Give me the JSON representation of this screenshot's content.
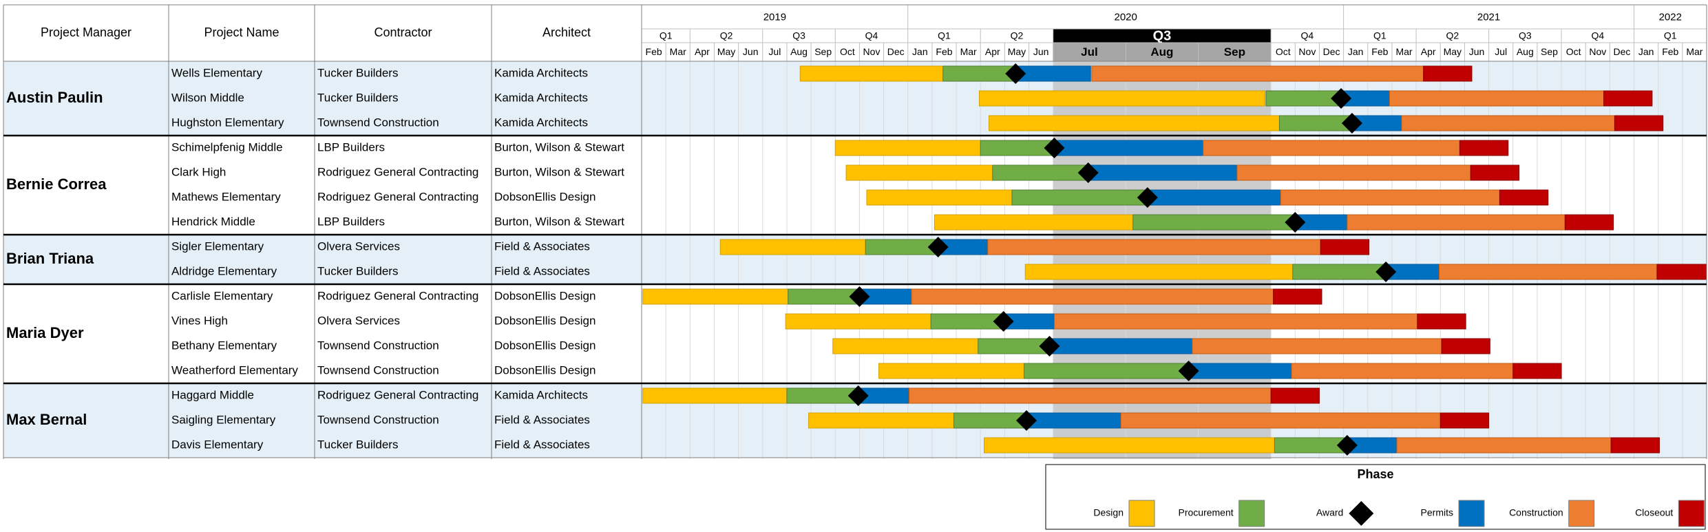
{
  "columns": {
    "manager": "Project Manager",
    "project": "Project Name",
    "contractor": "Contractor",
    "architect": "Architect"
  },
  "timeline": {
    "years": [
      {
        "label": "2019",
        "start": 0,
        "end": 11
      },
      {
        "label": "2020",
        "start": 11,
        "end": 29
      },
      {
        "label": "2021",
        "start": 29,
        "end": 41
      },
      {
        "label": "2022",
        "start": 41,
        "end": 44
      }
    ],
    "quarters": [
      {
        "label": "Q1",
        "start": 0,
        "end": 2
      },
      {
        "label": "Q2",
        "start": 2,
        "end": 5
      },
      {
        "label": "Q3",
        "start": 5,
        "end": 8
      },
      {
        "label": "Q4",
        "start": 8,
        "end": 11
      },
      {
        "label": "Q1",
        "start": 11,
        "end": 14
      },
      {
        "label": "Q2",
        "start": 14,
        "end": 17
      },
      {
        "label": "Q3",
        "start": 17,
        "end": 26,
        "highlight": true
      },
      {
        "label": "Q4",
        "start": 26,
        "end": 29
      },
      {
        "label": "Q1",
        "start": 29,
        "end": 32
      },
      {
        "label": "Q2",
        "start": 32,
        "end": 35
      },
      {
        "label": "Q3",
        "start": 35,
        "end": 38
      },
      {
        "label": "Q4",
        "start": 38,
        "end": 41
      },
      {
        "label": "Q1",
        "start": 41,
        "end": 44
      }
    ],
    "months": [
      {
        "label": "Feb"
      },
      {
        "label": "Mar"
      },
      {
        "label": "Apr"
      },
      {
        "label": "May"
      },
      {
        "label": "Jun"
      },
      {
        "label": "Jul"
      },
      {
        "label": "Aug"
      },
      {
        "label": "Sep"
      },
      {
        "label": "Oct"
      },
      {
        "label": "Nov"
      },
      {
        "label": "Dec"
      },
      {
        "label": "Jan"
      },
      {
        "label": "Feb"
      },
      {
        "label": "Mar"
      },
      {
        "label": "Apr"
      },
      {
        "label": "May"
      },
      {
        "label": "Jun"
      },
      {
        "label": "Jul",
        "span": 3,
        "highlight": true
      },
      {
        "label": "Aug",
        "span": 3,
        "highlight": true
      },
      {
        "label": "Sep",
        "span": 3,
        "highlight": true
      },
      {
        "label": "Oct"
      },
      {
        "label": "Nov"
      },
      {
        "label": "Dec"
      },
      {
        "label": "Jan"
      },
      {
        "label": "Feb"
      },
      {
        "label": "Mar"
      },
      {
        "label": "Apr"
      },
      {
        "label": "May"
      },
      {
        "label": "Jun"
      },
      {
        "label": "Jul"
      },
      {
        "label": "Aug"
      },
      {
        "label": "Sep"
      },
      {
        "label": "Oct"
      },
      {
        "label": "Nov"
      },
      {
        "label": "Dec"
      },
      {
        "label": "Jan"
      },
      {
        "label": "Feb"
      },
      {
        "label": "Mar"
      }
    ]
  },
  "chart_data": {
    "type": "gantt",
    "title": "",
    "time_unit": "month slots from Feb 2019 (Jul/Aug/Sep 2020 expanded to 3 slots each)",
    "highlight_period": "Q3 2020",
    "phase_colors": {
      "Design": "#FFC000",
      "Procurement": "#70AD47",
      "Award": "#000000",
      "Permits": "#0070C0",
      "Construction": "#ED7D31",
      "Closeout": "#C00000"
    },
    "groups": [
      {
        "manager": "Austin Paulin",
        "projects": [
          {
            "name": "Wells Elementary",
            "contractor": "Tucker Builders",
            "architect": "Kamida Architects",
            "design": [
              6.55,
              12.45
            ],
            "procurement": [
              12.45,
              15.45
            ],
            "award": 15.45,
            "permits": [
              15.45,
              18.55
            ],
            "construction": [
              18.6,
              32.3
            ],
            "closeout": [
              32.3,
              34.3
            ]
          },
          {
            "name": "Wilson Middle",
            "contractor": "Tucker Builders",
            "architect": "Kamida Architects",
            "design": [
              13.95,
              25.75
            ],
            "procurement": [
              25.8,
              28.9
            ],
            "award": 28.9,
            "permits": [
              28.9,
              30.9
            ],
            "construction": [
              30.9,
              39.75
            ],
            "closeout": [
              39.75,
              41.75
            ]
          },
          {
            "name": "Hughston Elementary",
            "contractor": "Townsend Construction",
            "architect": "Kamida Architects",
            "design": [
              14.35,
              26.35
            ],
            "procurement": [
              26.35,
              29.35
            ],
            "award": 29.35,
            "permits": [
              29.35,
              31.4
            ],
            "construction": [
              31.4,
              40.2
            ],
            "closeout": [
              40.2,
              42.2
            ]
          }
        ]
      },
      {
        "manager": "Bernie Correa",
        "projects": [
          {
            "name": "Schimelpfenig Middle",
            "contractor": "LBP Builders",
            "architect": "Burton, Wilson & Stewart",
            "design": [
              8.0,
              14.0
            ],
            "procurement": [
              14.0,
              17.05
            ],
            "award": 17.05,
            "permits": [
              17.05,
              23.2
            ],
            "construction": [
              23.2,
              33.8
            ],
            "closeout": [
              33.8,
              35.8
            ]
          },
          {
            "name": "Clark High",
            "contractor": "Rodriguez General Contracting",
            "architect": "Burton, Wilson & Stewart",
            "design": [
              8.45,
              14.5
            ],
            "procurement": [
              14.5,
              18.45
            ],
            "award": 18.45,
            "permits": [
              18.45,
              24.6
            ],
            "construction": [
              24.6,
              34.25
            ],
            "closeout": [
              34.25,
              36.25
            ]
          },
          {
            "name": "Mathews Elementary",
            "contractor": "Rodriguez General Contracting",
            "architect": "DobsonEllis Design",
            "design": [
              9.3,
              15.3
            ],
            "procurement": [
              15.3,
              20.9
            ],
            "award": 20.9,
            "permits": [
              20.9,
              26.4
            ],
            "construction": [
              26.4,
              35.45
            ],
            "closeout": [
              35.45,
              37.45
            ]
          },
          {
            "name": "Hendrick Middle",
            "contractor": "LBP Builders",
            "architect": "Burton, Wilson & Stewart",
            "design": [
              12.1,
              20.3
            ],
            "procurement": [
              20.3,
              27.0
            ],
            "award": 27.0,
            "permits": [
              27.0,
              29.15
            ],
            "construction": [
              29.15,
              38.15
            ],
            "closeout": [
              38.15,
              40.15
            ]
          }
        ]
      },
      {
        "manager": "Brian Triana",
        "projects": [
          {
            "name": "Sigler Elementary",
            "contractor": "Olvera Services",
            "architect": "Field & Associates",
            "design": [
              3.25,
              9.25
            ],
            "procurement": [
              9.25,
              12.25
            ],
            "award": 12.25,
            "permits": [
              12.25,
              14.3
            ],
            "construction": [
              14.3,
              28.05
            ],
            "closeout": [
              28.05,
              30.05
            ]
          },
          {
            "name": "Aldridge Elementary",
            "contractor": "Tucker Builders",
            "architect": "Field & Associates",
            "design": [
              15.85,
              26.9
            ],
            "procurement": [
              26.9,
              30.75
            ],
            "award": 30.75,
            "permits": [
              30.75,
              32.95
            ],
            "construction": [
              32.95,
              41.95
            ],
            "closeout": [
              41.95,
              44.0
            ]
          }
        ]
      },
      {
        "manager": "Maria Dyer",
        "projects": [
          {
            "name": "Carlisle Elementary",
            "contractor": "Rodriguez General Contracting",
            "architect": "DobsonEllis Design",
            "design": [
              0.05,
              6.05
            ],
            "procurement": [
              6.05,
              9.0
            ],
            "award": 9.0,
            "permits": [
              9.0,
              11.15
            ],
            "construction": [
              11.15,
              26.1
            ],
            "closeout": [
              26.1,
              28.1
            ]
          },
          {
            "name": "Vines High",
            "contractor": "Olvera Services",
            "architect": "DobsonEllis Design",
            "design": [
              5.95,
              11.95
            ],
            "procurement": [
              11.95,
              14.95
            ],
            "award": 14.95,
            "permits": [
              14.95,
              17.05
            ],
            "construction": [
              17.05,
              32.05
            ],
            "closeout": [
              32.05,
              34.05
            ]
          },
          {
            "name": "Bethany Elementary",
            "contractor": "Townsend Construction",
            "architect": "DobsonEllis Design",
            "design": [
              7.9,
              13.9
            ],
            "procurement": [
              13.9,
              16.85
            ],
            "award": 16.85,
            "permits": [
              16.85,
              22.75
            ],
            "construction": [
              22.75,
              33.05
            ],
            "closeout": [
              33.05,
              35.05
            ]
          },
          {
            "name": "Weatherford Elementary",
            "contractor": "Townsend Construction",
            "architect": "DobsonEllis Design",
            "design": [
              9.8,
              15.8
            ],
            "procurement": [
              15.8,
              22.6
            ],
            "award": 22.6,
            "permits": [
              22.6,
              26.85
            ],
            "construction": [
              26.85,
              36.0
            ],
            "closeout": [
              36.0,
              38.0
            ]
          }
        ]
      },
      {
        "manager": "Max Bernal",
        "projects": [
          {
            "name": "Haggard Middle",
            "contractor": "Rodriguez General Contracting",
            "architect": "Kamida Architects",
            "design": [
              0.05,
              6.0
            ],
            "procurement": [
              6.0,
              8.95
            ],
            "award": 8.95,
            "permits": [
              8.95,
              11.05
            ],
            "construction": [
              11.05,
              26.0
            ],
            "closeout": [
              26.0,
              28.0
            ]
          },
          {
            "name": "Saigling Elementary",
            "contractor": "Townsend Construction",
            "architect": "Field & Associates",
            "design": [
              6.9,
              12.9
            ],
            "procurement": [
              12.9,
              15.9
            ],
            "award": 15.9,
            "permits": [
              15.9,
              19.8
            ],
            "construction": [
              19.8,
              33.0
            ],
            "closeout": [
              33.0,
              35.0
            ]
          },
          {
            "name": "Davis Elementary",
            "contractor": "Tucker Builders",
            "architect": "Field & Associates",
            "design": [
              14.15,
              26.15
            ],
            "procurement": [
              26.15,
              29.15
            ],
            "award": 29.15,
            "permits": [
              29.15,
              31.2
            ],
            "construction": [
              31.2,
              40.05
            ],
            "closeout": [
              40.05,
              42.05
            ]
          }
        ]
      }
    ]
  },
  "legend": {
    "title": "Phase",
    "items": [
      {
        "label": "Design",
        "color": "#FFC000",
        "shape": "square"
      },
      {
        "label": "Procurement",
        "color": "#70AD47",
        "shape": "square"
      },
      {
        "label": "Award",
        "color": "#000000",
        "shape": "diamond"
      },
      {
        "label": "Permits",
        "color": "#0070C0",
        "shape": "square"
      },
      {
        "label": "Construction",
        "color": "#ED7D31",
        "shape": "square"
      },
      {
        "label": "Closeout",
        "color": "#C00000",
        "shape": "square"
      }
    ]
  }
}
